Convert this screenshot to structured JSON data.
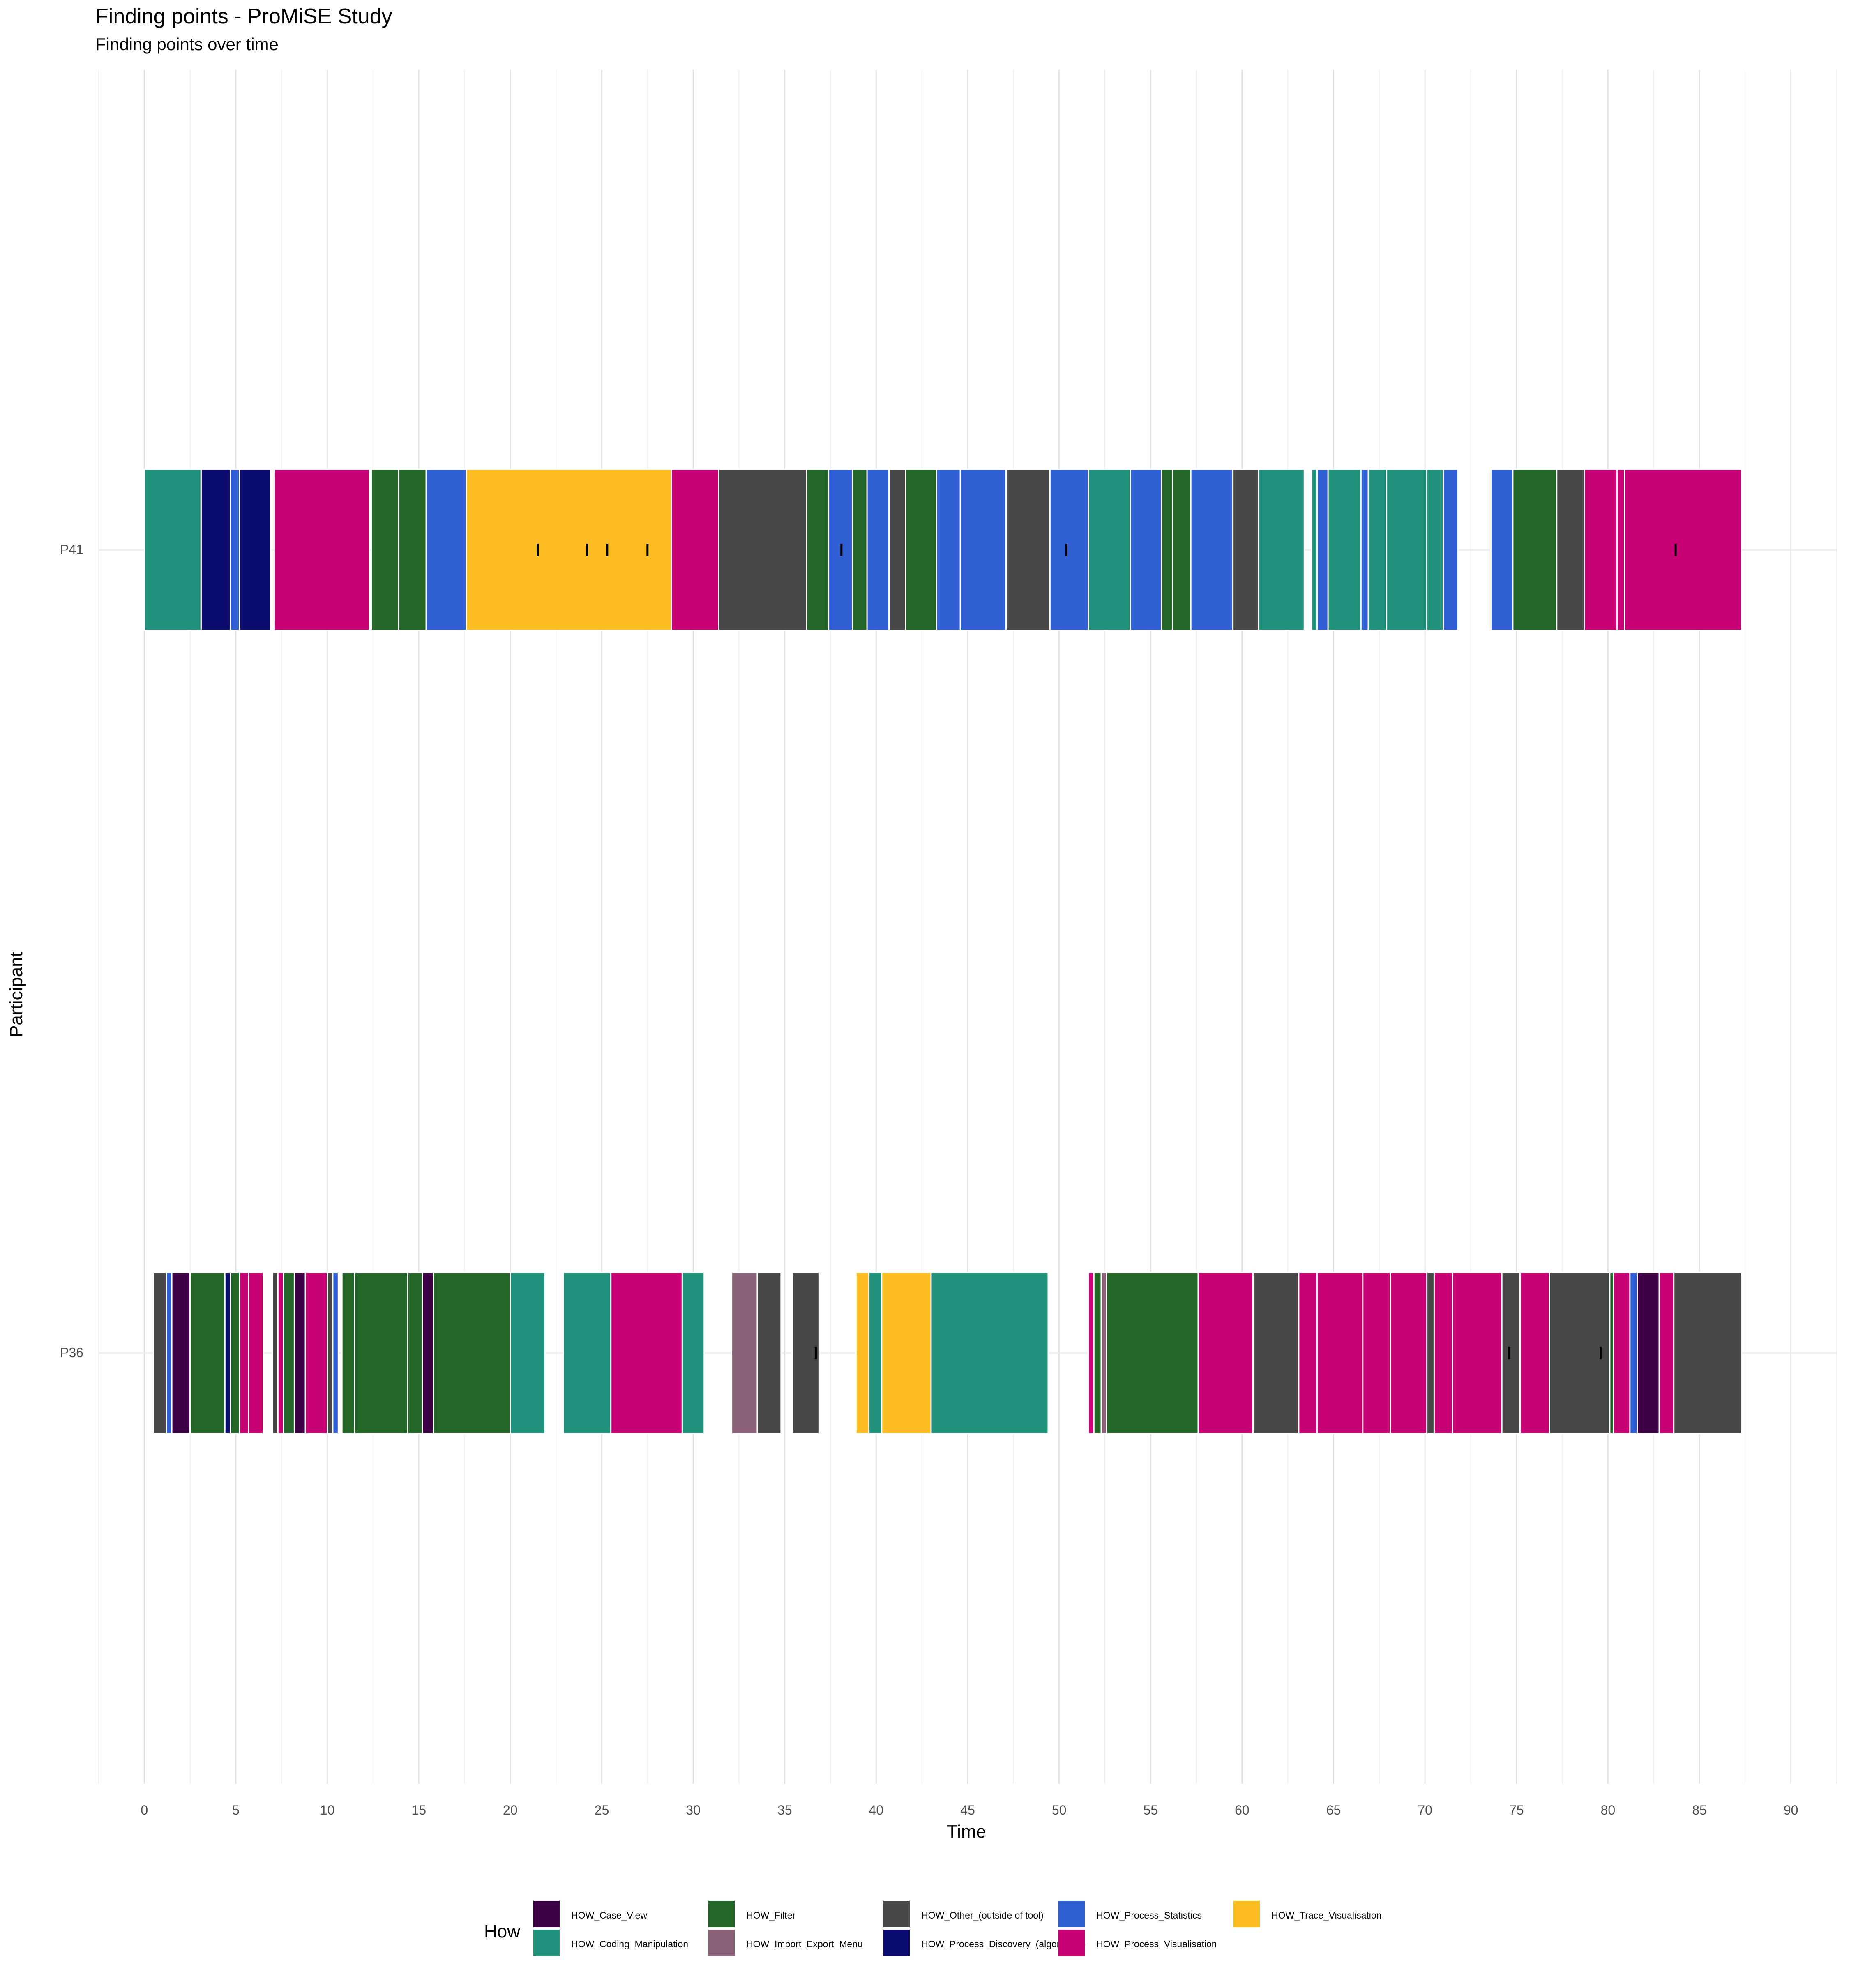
{
  "chart_data": {
    "type": "gantt-bar",
    "title": "Finding points - ProMiSE Study",
    "subtitle": "Finding points over time",
    "xlabel": "Time",
    "ylabel": "Participant",
    "xlim": [
      -2.5,
      92.5
    ],
    "xticks": [
      0,
      5,
      10,
      15,
      20,
      25,
      30,
      35,
      40,
      45,
      50,
      55,
      60,
      65,
      70,
      75,
      80,
      85,
      90
    ],
    "participants": [
      "P41",
      "P36"
    ],
    "legend": {
      "title": "How",
      "position": "bottom",
      "entries": [
        {
          "key": "case",
          "label": "HOW_Case_View",
          "color": "#3d0044"
        },
        {
          "key": "coding",
          "label": "HOW_Coding_Manipulation",
          "color": "#20917a"
        },
        {
          "key": "filter",
          "label": "HOW_Filter",
          "color": "#226526"
        },
        {
          "key": "import",
          "label": "HOW_Import_Export_Menu",
          "color": "#8a6177"
        },
        {
          "key": "other",
          "label": "HOW_Other_(outside of tool)",
          "color": "#474747"
        },
        {
          "key": "discovery",
          "label": "HOW_Process_Discovery_(algorithms)",
          "color": "#0b0a6e"
        },
        {
          "key": "stats",
          "label": "HOW_Process_Statistics",
          "color": "#2f5fd2"
        },
        {
          "key": "vis",
          "label": "HOW_Process_Visualisation",
          "color": "#c70073"
        },
        {
          "key": "trace",
          "label": "HOW_Trace_Visualisation",
          "color": "#fbbd22"
        }
      ]
    },
    "series": [
      {
        "participant": "P41",
        "segments": [
          {
            "start": 0.0,
            "end": 3.1,
            "how": "coding"
          },
          {
            "start": 3.1,
            "end": 4.7,
            "how": "discovery"
          },
          {
            "start": 4.7,
            "end": 5.2,
            "how": "stats"
          },
          {
            "start": 5.2,
            "end": 6.9,
            "how": "discovery"
          },
          {
            "start": 7.1,
            "end": 12.3,
            "how": "vis"
          },
          {
            "start": 12.4,
            "end": 13.9,
            "how": "filter"
          },
          {
            "start": 13.9,
            "end": 15.4,
            "how": "filter"
          },
          {
            "start": 15.4,
            "end": 17.6,
            "how": "stats"
          },
          {
            "start": 17.6,
            "end": 28.8,
            "how": "trace"
          },
          {
            "start": 28.8,
            "end": 31.4,
            "how": "vis"
          },
          {
            "start": 31.4,
            "end": 36.2,
            "how": "other"
          },
          {
            "start": 36.2,
            "end": 37.4,
            "how": "filter"
          },
          {
            "start": 37.4,
            "end": 38.7,
            "how": "stats"
          },
          {
            "start": 38.7,
            "end": 39.5,
            "how": "filter"
          },
          {
            "start": 39.5,
            "end": 40.7,
            "how": "stats"
          },
          {
            "start": 40.7,
            "end": 41.6,
            "how": "other"
          },
          {
            "start": 41.6,
            "end": 43.3,
            "how": "filter"
          },
          {
            "start": 43.3,
            "end": 44.6,
            "how": "stats"
          },
          {
            "start": 44.6,
            "end": 47.1,
            "how": "stats"
          },
          {
            "start": 47.1,
            "end": 49.5,
            "how": "other"
          },
          {
            "start": 49.5,
            "end": 51.6,
            "how": "stats"
          },
          {
            "start": 51.6,
            "end": 53.9,
            "how": "coding"
          },
          {
            "start": 53.9,
            "end": 55.6,
            "how": "stats"
          },
          {
            "start": 55.6,
            "end": 56.2,
            "how": "filter"
          },
          {
            "start": 56.2,
            "end": 57.2,
            "how": "filter"
          },
          {
            "start": 57.2,
            "end": 59.5,
            "how": "stats"
          },
          {
            "start": 59.5,
            "end": 60.9,
            "how": "other"
          },
          {
            "start": 60.9,
            "end": 63.4,
            "how": "coding"
          },
          {
            "start": 63.8,
            "end": 64.1,
            "how": "coding"
          },
          {
            "start": 64.1,
            "end": 64.7,
            "how": "stats"
          },
          {
            "start": 64.7,
            "end": 66.5,
            "how": "coding"
          },
          {
            "start": 66.5,
            "end": 66.9,
            "how": "stats"
          },
          {
            "start": 66.9,
            "end": 67.9,
            "how": "coding"
          },
          {
            "start": 67.9,
            "end": 70.1,
            "how": "coding"
          },
          {
            "start": 70.1,
            "end": 71.0,
            "how": "coding"
          },
          {
            "start": 71.0,
            "end": 71.8,
            "how": "stats"
          },
          {
            "start": 73.6,
            "end": 74.8,
            "how": "stats"
          },
          {
            "start": 74.8,
            "end": 77.2,
            "how": "filter"
          },
          {
            "start": 77.2,
            "end": 78.7,
            "how": "other"
          },
          {
            "start": 78.7,
            "end": 80.5,
            "how": "vis"
          },
          {
            "start": 80.5,
            "end": 80.9,
            "how": "vis"
          },
          {
            "start": 80.9,
            "end": 87.3,
            "how": "vis"
          }
        ],
        "findings": [
          21.5,
          24.2,
          25.3,
          27.5,
          38.1,
          50.4,
          83.7
        ]
      },
      {
        "participant": "P36",
        "segments": [
          {
            "start": 0.5,
            "end": 1.2,
            "how": "other"
          },
          {
            "start": 1.2,
            "end": 1.5,
            "how": "stats"
          },
          {
            "start": 1.5,
            "end": 2.5,
            "how": "case"
          },
          {
            "start": 2.5,
            "end": 4.4,
            "how": "filter"
          },
          {
            "start": 4.4,
            "end": 4.7,
            "how": "discovery"
          },
          {
            "start": 4.7,
            "end": 5.2,
            "how": "filter"
          },
          {
            "start": 5.2,
            "end": 5.7,
            "how": "vis"
          },
          {
            "start": 5.7,
            "end": 6.5,
            "how": "vis"
          },
          {
            "start": 7.0,
            "end": 7.3,
            "how": "other"
          },
          {
            "start": 7.3,
            "end": 7.6,
            "how": "vis"
          },
          {
            "start": 7.6,
            "end": 8.2,
            "how": "filter"
          },
          {
            "start": 8.2,
            "end": 8.8,
            "how": "case"
          },
          {
            "start": 8.8,
            "end": 10.0,
            "how": "vis"
          },
          {
            "start": 10.0,
            "end": 10.3,
            "how": "other"
          },
          {
            "start": 10.3,
            "end": 10.6,
            "how": "stats"
          },
          {
            "start": 10.8,
            "end": 11.5,
            "how": "filter"
          },
          {
            "start": 11.5,
            "end": 14.4,
            "how": "filter"
          },
          {
            "start": 14.4,
            "end": 15.2,
            "how": "filter"
          },
          {
            "start": 15.2,
            "end": 15.8,
            "how": "case"
          },
          {
            "start": 15.8,
            "end": 20.0,
            "how": "filter"
          },
          {
            "start": 20.0,
            "end": 21.9,
            "how": "coding"
          },
          {
            "start": 22.9,
            "end": 25.5,
            "how": "coding"
          },
          {
            "start": 25.5,
            "end": 29.4,
            "how": "vis"
          },
          {
            "start": 29.4,
            "end": 30.6,
            "how": "coding"
          },
          {
            "start": 32.1,
            "end": 33.5,
            "how": "import"
          },
          {
            "start": 33.5,
            "end": 34.8,
            "how": "other"
          },
          {
            "start": 35.4,
            "end": 36.9,
            "how": "other"
          },
          {
            "start": 38.9,
            "end": 39.6,
            "how": "trace"
          },
          {
            "start": 39.6,
            "end": 40.3,
            "how": "coding"
          },
          {
            "start": 40.3,
            "end": 43.0,
            "how": "trace"
          },
          {
            "start": 43.0,
            "end": 49.4,
            "how": "coding"
          },
          {
            "start": 51.6,
            "end": 51.9,
            "how": "vis"
          },
          {
            "start": 51.9,
            "end": 52.3,
            "how": "filter"
          },
          {
            "start": 52.3,
            "end": 52.6,
            "how": "import"
          },
          {
            "start": 52.6,
            "end": 57.6,
            "how": "filter"
          },
          {
            "start": 57.6,
            "end": 60.6,
            "how": "vis"
          },
          {
            "start": 60.6,
            "end": 63.1,
            "how": "other"
          },
          {
            "start": 63.1,
            "end": 64.1,
            "how": "vis"
          },
          {
            "start": 64.1,
            "end": 66.6,
            "how": "vis"
          },
          {
            "start": 66.6,
            "end": 68.1,
            "how": "vis"
          },
          {
            "start": 68.1,
            "end": 70.1,
            "how": "vis"
          },
          {
            "start": 70.1,
            "end": 70.5,
            "how": "other"
          },
          {
            "start": 70.5,
            "end": 71.5,
            "how": "vis"
          },
          {
            "start": 71.5,
            "end": 74.2,
            "how": "vis"
          },
          {
            "start": 74.2,
            "end": 75.2,
            "how": "other"
          },
          {
            "start": 75.2,
            "end": 76.8,
            "how": "vis"
          },
          {
            "start": 76.8,
            "end": 80.1,
            "how": "other"
          },
          {
            "start": 80.1,
            "end": 80.3,
            "how": "filter"
          },
          {
            "start": 80.3,
            "end": 81.2,
            "how": "vis"
          },
          {
            "start": 81.2,
            "end": 81.6,
            "how": "stats"
          },
          {
            "start": 81.6,
            "end": 82.8,
            "how": "case"
          },
          {
            "start": 82.8,
            "end": 83.6,
            "how": "vis"
          },
          {
            "start": 83.6,
            "end": 87.3,
            "how": "other"
          }
        ],
        "findings": [
          36.7,
          74.6,
          79.6
        ]
      }
    ]
  }
}
